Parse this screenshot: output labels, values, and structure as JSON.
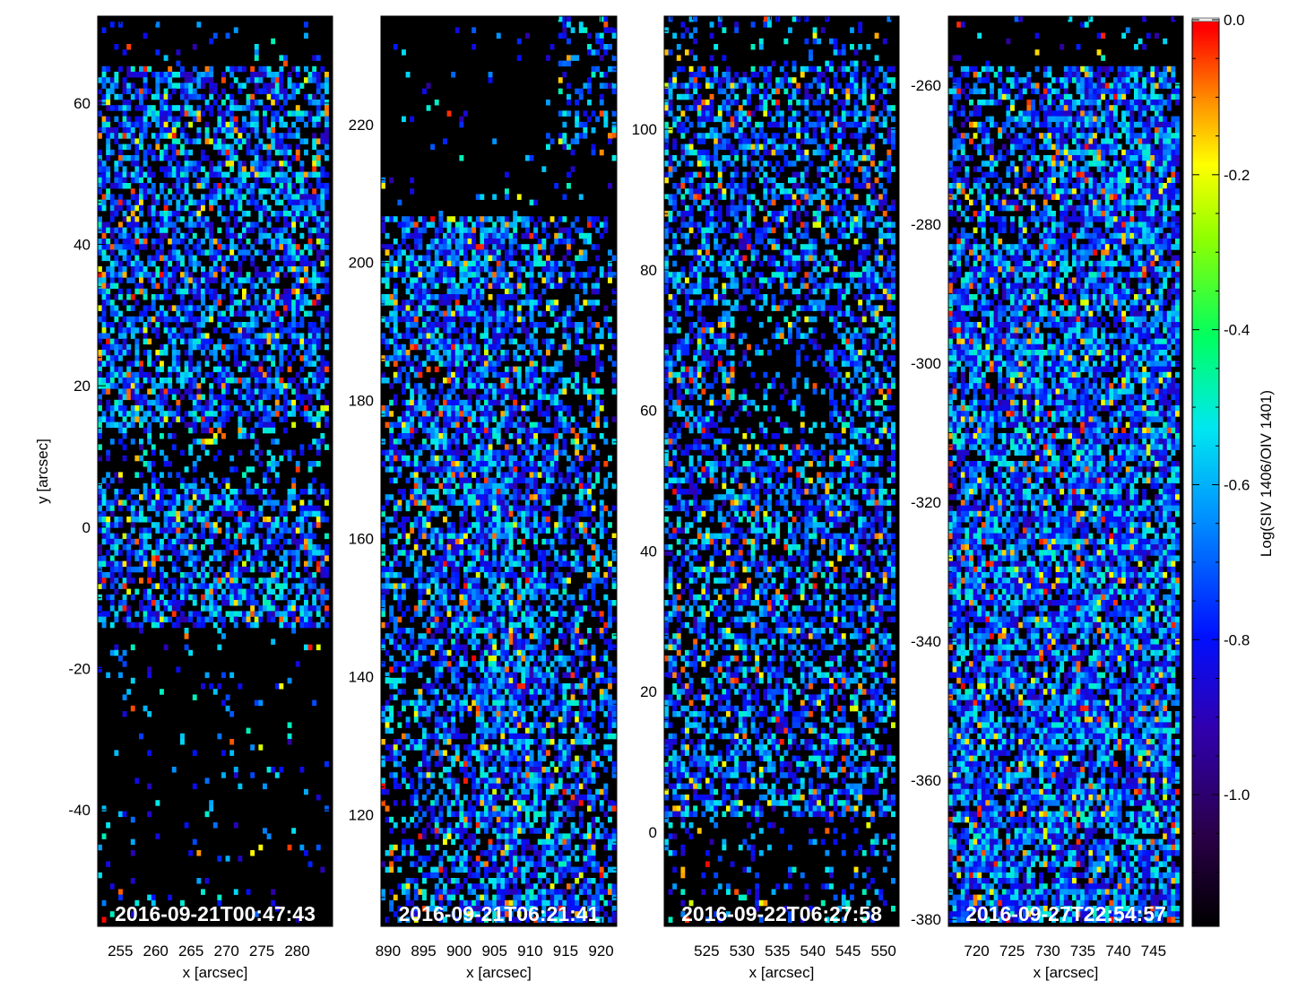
{
  "chart_data": {
    "type": "heatmap",
    "colorbar": {
      "label": "Log(SIV 1406/OIV 1401)",
      "range": [
        -1.17,
        0.0
      ],
      "ticks": [
        0.0,
        -0.2,
        -0.4,
        -0.6,
        -0.8,
        -1.0
      ],
      "tick_labels": [
        "0.0",
        "-0.2",
        "-0.4",
        "-0.6",
        "-0.8",
        "-1.0"
      ],
      "colormap": "rainbow (black-purple-blue-cyan-green-yellow-orange-red)",
      "stops": [
        "#000000",
        "#3a0060",
        "#0000ff",
        "#00e0ff",
        "#00ff40",
        "#ffff00",
        "#ff8000",
        "#ff0000"
      ]
    },
    "panels": [
      {
        "timestamp": "2016-09-21T00:47:43",
        "xlabel": "x [arcsec]",
        "ylabel": "y [arcsec]",
        "xlim": [
          251.8,
          285.0
        ],
        "ylim": [
          -56.5,
          72.3
        ],
        "xticks": [
          255,
          260,
          265,
          270,
          275,
          280
        ],
        "xtick_labels": [
          "255",
          "260",
          "265",
          "270",
          "275",
          "280"
        ],
        "yticks": [
          -40,
          -20,
          0,
          20,
          40,
          60
        ],
        "ytick_labels": [
          "-40",
          "-20",
          "0",
          "20",
          "40",
          "60"
        ]
      },
      {
        "timestamp": "2016-09-21T06:21:41",
        "xlabel": "x [arcsec]",
        "ylabel": "",
        "xlim": [
          889.0,
          922.2
        ],
        "ylim": [
          103.8,
          235.7
        ],
        "xticks": [
          890,
          895,
          900,
          905,
          910,
          915,
          920
        ],
        "xtick_labels": [
          "890",
          "895",
          "900",
          "905",
          "910",
          "915",
          "920"
        ],
        "yticks": [
          120,
          140,
          160,
          180,
          200,
          220
        ],
        "ytick_labels": [
          "120",
          "140",
          "160",
          "180",
          "200",
          "220"
        ]
      },
      {
        "timestamp": "2016-09-22T06:27:58",
        "xlabel": "x [arcsec]",
        "ylabel": "",
        "xlim": [
          519.0,
          552.2
        ],
        "ylim": [
          -13.4,
          116.1
        ],
        "xticks": [
          525,
          530,
          535,
          540,
          545,
          550
        ],
        "xtick_labels": [
          "525",
          "530",
          "535",
          "540",
          "545",
          "550"
        ],
        "yticks": [
          0,
          20,
          40,
          60,
          80,
          100
        ],
        "ytick_labels": [
          "0",
          "20",
          "40",
          "60",
          "80",
          "100"
        ]
      },
      {
        "timestamp": "2016-09-27T22:54:57",
        "xlabel": "x [arcsec]",
        "ylabel": "",
        "xlim": [
          716.0,
          749.2
        ],
        "ylim": [
          -381.0,
          -250.1
        ],
        "xticks": [
          720,
          725,
          730,
          735,
          740,
          745
        ],
        "xtick_labels": [
          "720",
          "725",
          "730",
          "735",
          "740",
          "745"
        ],
        "yticks": [
          -380,
          -360,
          -340,
          -320,
          -300,
          -280,
          -260
        ],
        "ytick_labels": [
          "-380",
          "-360",
          "-340",
          "-320",
          "-300",
          "-280",
          "-260"
        ]
      }
    ]
  }
}
